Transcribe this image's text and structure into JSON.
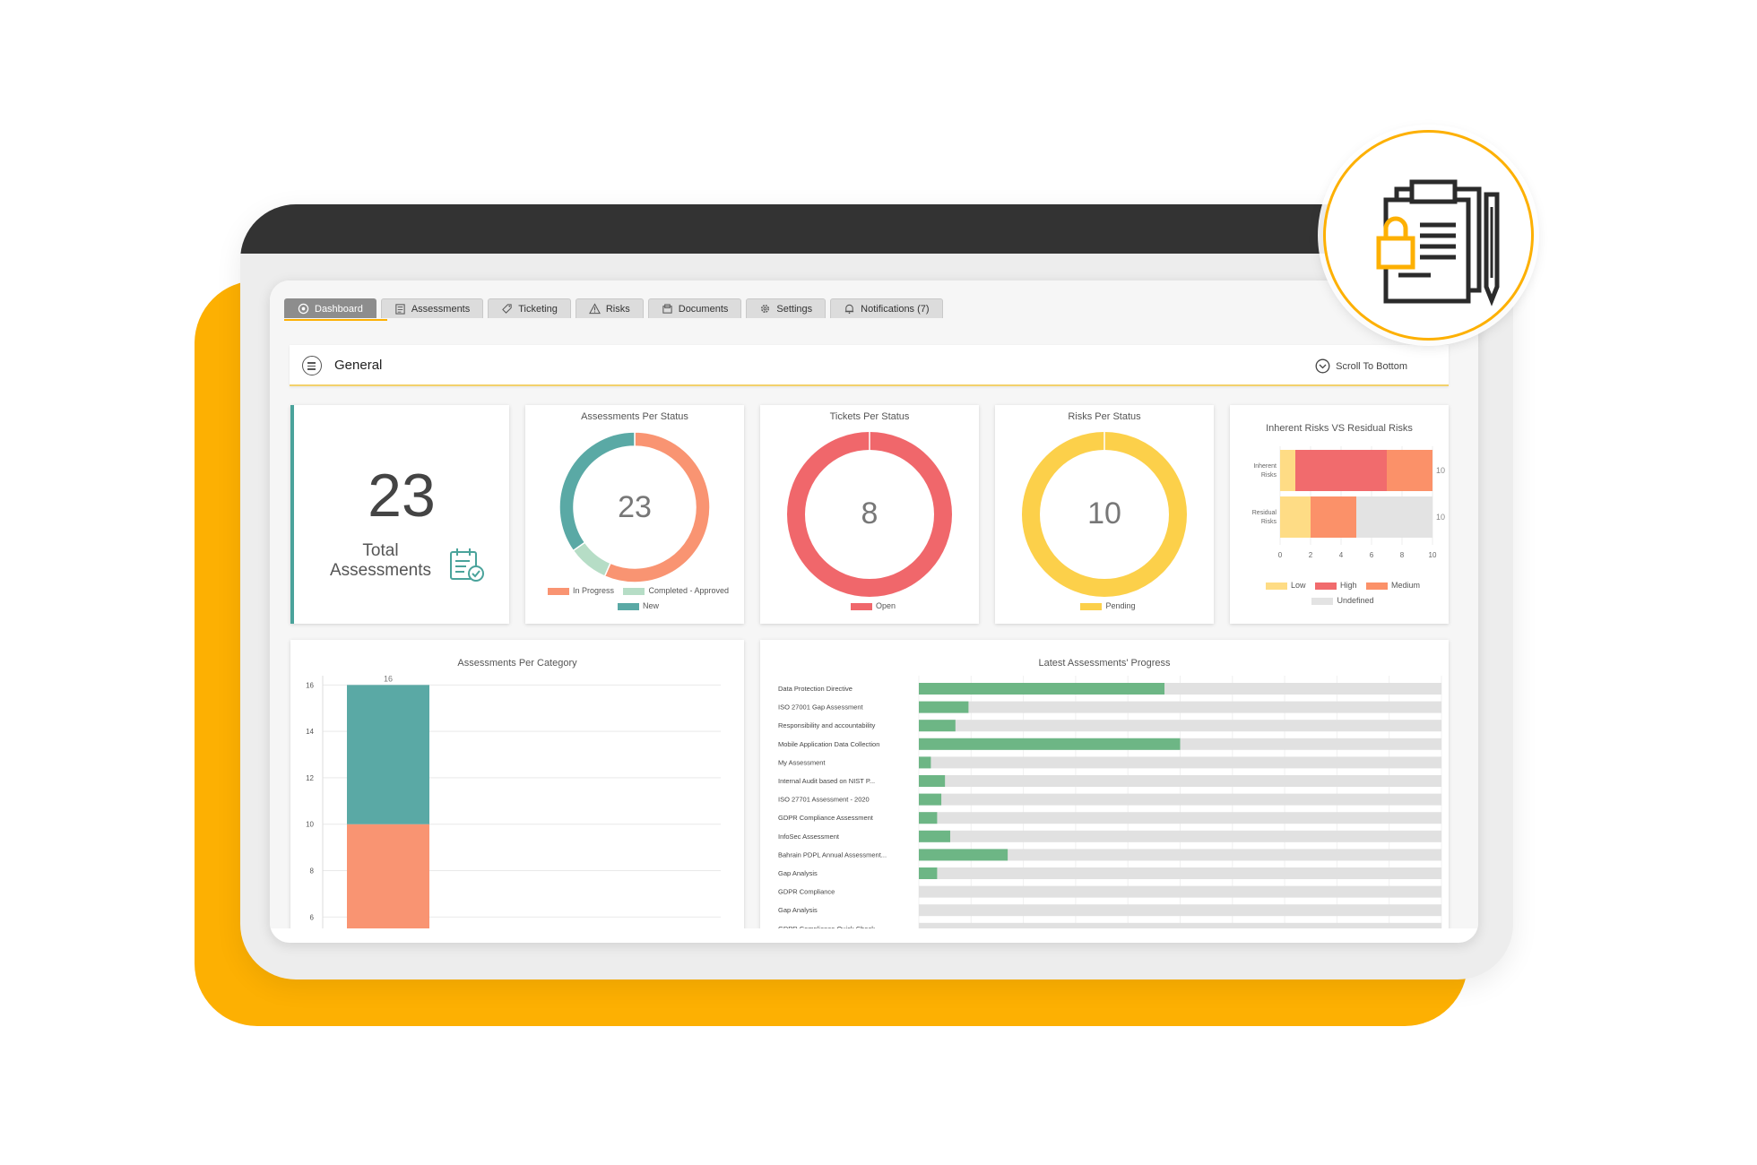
{
  "tabs": [
    {
      "label": "Dashboard",
      "icon": "dashboard-icon"
    },
    {
      "label": "Assessments",
      "icon": "checklist-icon"
    },
    {
      "label": "Ticketing",
      "icon": "ticket-icon"
    },
    {
      "label": "Risks",
      "icon": "warning-icon"
    },
    {
      "label": "Documents",
      "icon": "document-icon"
    },
    {
      "label": "Settings",
      "icon": "gear-icon"
    },
    {
      "label": "Notifications (7)",
      "icon": "bell-icon"
    }
  ],
  "general": {
    "title": "General",
    "scroll_label": "Scroll To Bottom"
  },
  "total": {
    "value": "23",
    "label_line1": "Total",
    "label_line2": "Assessments"
  },
  "colors": {
    "in_progress": "#F99472",
    "completed": "#B6DDC6",
    "new": "#5AA9A5",
    "open": "#F0676B",
    "pending": "#FCD04A",
    "low": "#FEDC85",
    "high": "#F16B6D",
    "medium": "#FB9169",
    "undefined": "#E3E3E3",
    "progress_green": "#6DB685",
    "progress_track": "#E1E1E1",
    "accent": "#FDB002"
  },
  "assessments_per_status": {
    "title": "Assessments Per Status",
    "center": "23",
    "chart_data": {
      "type": "pie",
      "values": [
        {
          "name": "In Progress",
          "value": 13
        },
        {
          "name": "Completed - Approved",
          "value": 2
        },
        {
          "name": "New",
          "value": 8
        }
      ]
    },
    "legend": [
      "In Progress",
      "Completed - Approved",
      "New"
    ]
  },
  "tickets_per_status": {
    "title": "Tickets Per Status",
    "center": "8",
    "chart_data": {
      "type": "pie",
      "values": [
        {
          "name": "Open",
          "value": 8
        }
      ]
    },
    "legend": [
      "Open"
    ]
  },
  "risks_per_status": {
    "title": "Risks Per Status",
    "center": "10",
    "chart_data": {
      "type": "pie",
      "values": [
        {
          "name": "Pending",
          "value": 10
        }
      ]
    },
    "legend": [
      "Pending"
    ]
  },
  "inherent_vs_residual": {
    "title": "Inherent Risks VS Residual Risks",
    "chart_data": {
      "type": "bar",
      "categories": [
        "Inherent Risks",
        "Residual Risks"
      ],
      "series": [
        {
          "name": "Low",
          "values": [
            1,
            2
          ]
        },
        {
          "name": "High",
          "values": [
            6,
            0
          ]
        },
        {
          "name": "Medium",
          "values": [
            3,
            3
          ]
        },
        {
          "name": "Undefined",
          "values": [
            0,
            5
          ]
        }
      ],
      "totals": [
        "10",
        "10"
      ],
      "xticks": [
        "0",
        "2",
        "4",
        "6",
        "8",
        "10"
      ],
      "xlim": [
        0,
        10
      ]
    },
    "labels": {
      "inherent_l1": "Inherent",
      "inherent_l2": "Risks",
      "residual_l1": "Residual",
      "residual_l2": "Risks"
    }
  },
  "assessments_per_category": {
    "title": "Assessments Per Category",
    "chart_data": {
      "type": "bar",
      "categories": [
        ""
      ],
      "series": [
        {
          "name": "",
          "color": "#F99472",
          "values": [
            10
          ]
        },
        {
          "name": "",
          "color": "#5AA9A5",
          "values": [
            6
          ]
        }
      ],
      "total_label": "16",
      "yticks": [
        "16",
        "14",
        "12",
        "10",
        "8",
        "6"
      ],
      "ylim_visible": [
        5.2,
        16.4
      ]
    }
  },
  "latest_progress": {
    "title": "Latest Assessments' Progress",
    "chart_data": {
      "type": "bar",
      "categories": [
        "Data Protection Directive",
        "ISO 27001 Gap Assessment",
        "Responsibility and accountability",
        "Mobile Application Data Collection",
        "My Assessment",
        "Internal Audit based on NIST P...",
        "ISO 27701 Assessment - 2020",
        "GDPR Compliance Assessment",
        "InfoSec Assessment",
        "Bahrain PDPL Annual Assessment...",
        "Gap Analysis",
        "GDPR Compliance",
        "Gap Analysis",
        "GDPR Compliance Quick Check"
      ],
      "values": [
        47,
        9.5,
        7,
        50,
        2.3,
        5,
        4.3,
        3.5,
        6,
        17,
        3.5,
        0,
        0,
        0
      ],
      "xlim": [
        0,
        100
      ]
    }
  }
}
